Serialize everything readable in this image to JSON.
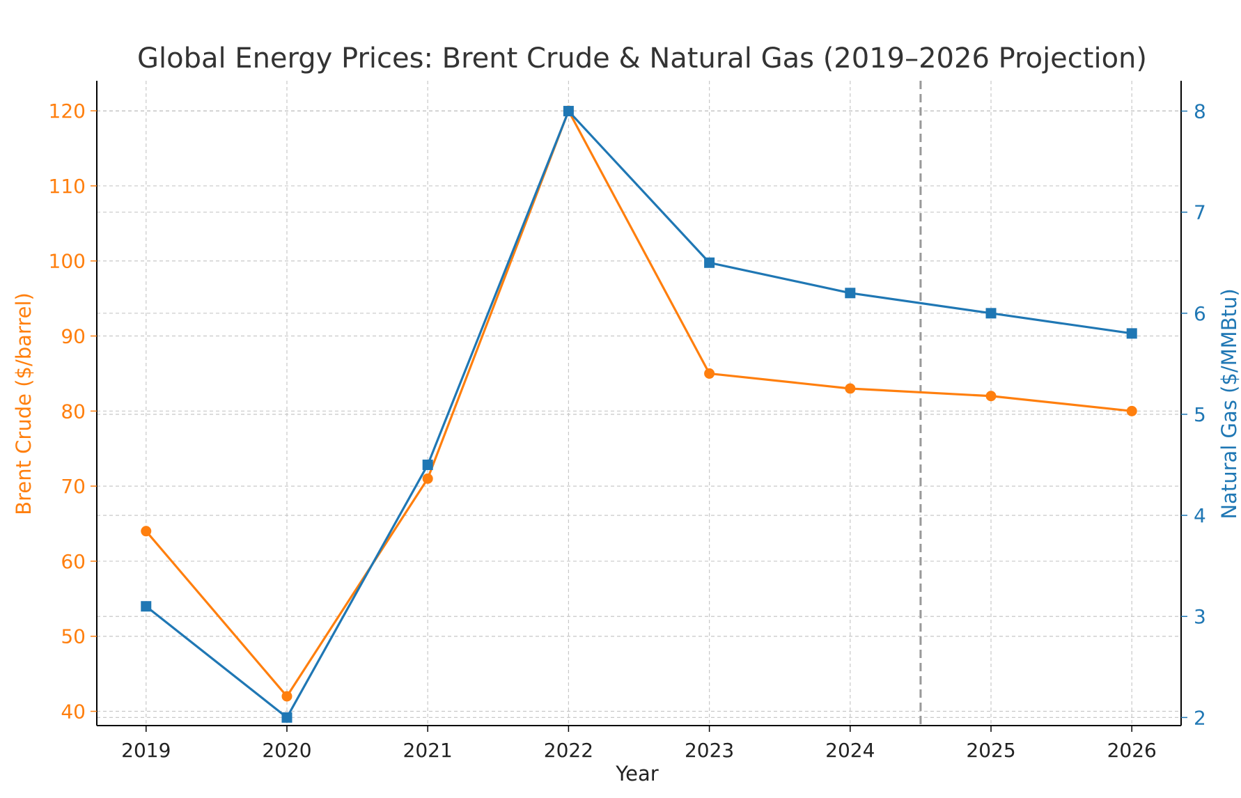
{
  "chart_data": {
    "type": "line",
    "title": "Global Energy Prices: Brent Crude & Natural Gas (2019–2026 Projection)",
    "xlabel": "Year",
    "ylabel_left": "Brent Crude ($/barrel)",
    "ylabel_right": "Natural Gas ($/MMBtu)",
    "categories": [
      "2019",
      "2020",
      "2021",
      "2022",
      "2023",
      "2024",
      "2025",
      "2026"
    ],
    "y_left_ticks": [
      40,
      50,
      60,
      70,
      80,
      90,
      100,
      110,
      120
    ],
    "y_right_ticks": [
      2,
      3,
      4,
      5,
      6,
      7,
      8
    ],
    "ylim_left": [
      38.1,
      124
    ],
    "ylim_right": [
      1.92,
      8.3
    ],
    "xlim": [
      2018.65,
      2026.35
    ],
    "grid": true,
    "projection_start_x": 2024.5,
    "series": [
      {
        "axis": "left",
        "marker": "circle",
        "color": "#ff7f0e",
        "values": [
          64,
          42,
          71,
          120,
          85,
          83,
          82,
          80
        ]
      },
      {
        "axis": "right",
        "marker": "square",
        "color": "#1f77b4",
        "values": [
          3.1,
          2.0,
          4.5,
          8.0,
          6.5,
          6.2,
          6.0,
          5.8
        ]
      }
    ],
    "colors": {
      "left_axis": "#ff7f0e",
      "right_axis": "#1f77b4",
      "projection_line": "#999999",
      "grid": "#c8c8c8",
      "title": "#333333",
      "x_axis_text": "#222222"
    }
  }
}
